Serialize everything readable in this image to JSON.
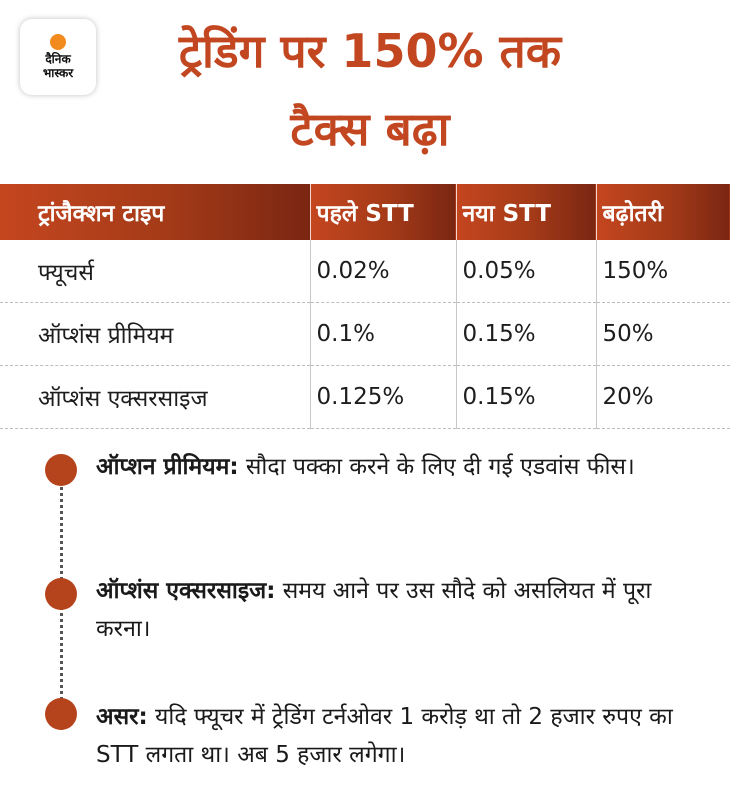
{
  "logo": {
    "line1": "दैनिक",
    "line2": "भास्कर"
  },
  "title": {
    "line1": "ट्रेडिंग पर 150% तक",
    "line2": "टैक्स बढ़ा"
  },
  "table": {
    "headers": [
      "ट्रांजैक्शन टाइप",
      "पहले STT",
      "नया  STT",
      "बढ़ोतरी"
    ],
    "rows": [
      [
        "फ्यूचर्स",
        "0.02%",
        "0.05%",
        "150%"
      ],
      [
        "ऑप्शंस प्रीमियम",
        "0.1%",
        "0.15%",
        "50%"
      ],
      [
        "ऑप्शंस एक्सरसाइज",
        "0.125%",
        "0.15%",
        "20%"
      ]
    ]
  },
  "notes": [
    {
      "term": "ऑप्शन प्रीमियम:",
      "text": " सौदा पक्का करने के लिए दी गई एडवांस फीस।"
    },
    {
      "term": "ऑप्शंस एक्सरसाइज:",
      "text": " समय आने पर उस सौदे को असलियत में पूरा करना।"
    },
    {
      "term": "असर:",
      "text": " यदि फ्यूचर में ट्रेडिंग टर्नओवर 1 करोड़ था तो 2 हजार रुपए का STT लगता था। अब 5 हजार लगेगा।"
    }
  ],
  "colors": {
    "title": "#c24620",
    "header_start": "#c4461f",
    "header_end": "#7a2612",
    "dot": "#b5441c",
    "logo_sun": "#f28a1d"
  }
}
